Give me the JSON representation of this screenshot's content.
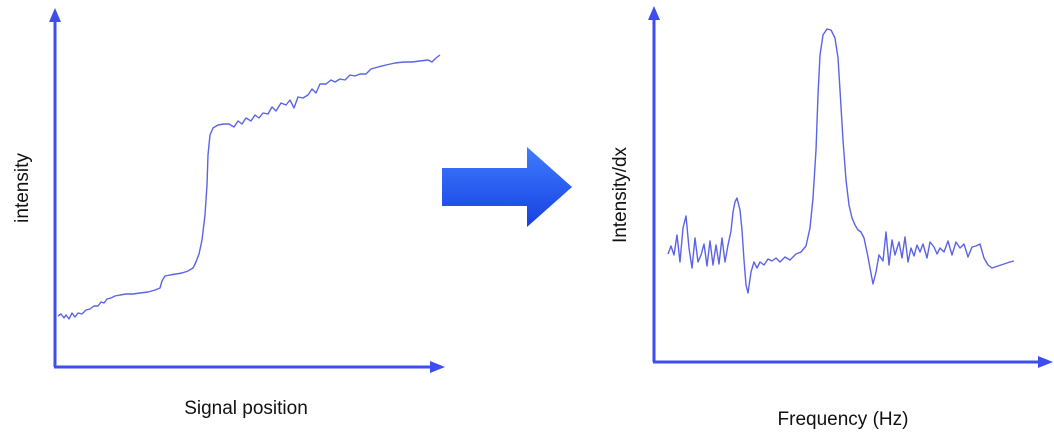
{
  "colors": {
    "axis": "#3d4df0",
    "curve": "#5b63e6",
    "arrow": "#1f5cf4",
    "text": "#111111"
  },
  "left_plot": {
    "x_label": "Signal position",
    "y_label": "intensity"
  },
  "right_plot": {
    "x_label": "Frequency (Hz)",
    "y_label": "Intensity/dx"
  }
}
